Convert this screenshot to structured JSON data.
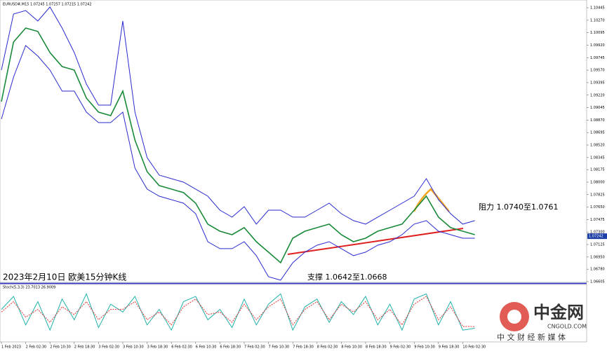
{
  "chart_data": [
    {
      "type": "line",
      "header": "EURUSD#,M15 1.07245 1.07257 1.07215 1.07242",
      "categories": [
        "1 Feb 2023",
        null,
        "2 Feb 02:30",
        null,
        "2 Feb 10:30",
        null,
        "2 Feb 18:30",
        null,
        "3 Feb 02:30",
        null,
        "3 Feb 10:30",
        null,
        "3 Feb 18:30",
        null,
        "6 Feb 02:30",
        null,
        "6 Feb 10:30",
        null,
        "6 Feb 18:30",
        null,
        "7 Feb 02:30",
        null,
        "7 Feb 10:30",
        null,
        "7 Feb 18:30",
        null,
        "8 Feb 02:30",
        null,
        "8 Feb 10:30",
        null,
        "8 Feb 18:30",
        null,
        "9 Feb 02:30",
        null,
        "9 Feb 10:30",
        null,
        "9 Feb 18:30",
        null,
        "10 Feb 02:30",
        null
      ],
      "series": [
        {
          "color": "#1a8a3a",
          "values": [
            1.09129,
            1.09964,
            1.10161,
            1.10112,
            1.09817,
            1.0962,
            1.09571,
            1.09178,
            1.08982,
            1.08933,
            1.09277,
            1.08589,
            1.08147,
            1.07951,
            1.07902,
            1.07853,
            1.07705,
            1.07411,
            1.07312,
            1.07263,
            1.07362,
            1.07165,
            1.07018,
            1.0687,
            1.07214,
            1.07312,
            1.07362,
            1.07411,
            1.07263,
            1.07165,
            1.07214,
            1.07312,
            1.07362,
            1.07411,
            1.07607,
            1.07803,
            1.07509,
            1.07362,
            1.07312,
            1.07263
          ]
        },
        {
          "color": "#2a2ad0",
          "values": [
            1.09571,
            1.10357,
            1.10406,
            1.10259,
            1.10455,
            1.10161,
            1.09817,
            1.09375,
            1.0908,
            1.0908,
            1.10259,
            1.08982,
            1.08344,
            1.08098,
            1.08049,
            1.08,
            1.07902,
            1.07803,
            1.07607,
            1.07509,
            1.07656,
            1.07411,
            1.07607,
            1.07607,
            1.07509,
            1.07509,
            1.07607,
            1.07705,
            1.07558,
            1.0746,
            1.07411,
            1.07509,
            1.07607,
            1.07705,
            1.07803,
            1.08049,
            1.07754,
            1.07558,
            1.07411,
            1.0746
          ]
        },
        {
          "color": "#2a2ad0",
          "values": [
            1.08884,
            1.09473,
            1.09915,
            1.09768,
            1.09571,
            1.09277,
            1.09277,
            1.08982,
            1.08835,
            1.08835,
            1.08982,
            1.08196,
            1.07902,
            1.07803,
            1.07754,
            1.07705,
            1.07558,
            1.07165,
            1.07067,
            1.07067,
            1.07165,
            1.06969,
            1.06674,
            1.06625,
            1.0687,
            1.07018,
            1.07116,
            1.07165,
            1.07067,
            1.06969,
            1.07018,
            1.07116,
            1.07165,
            1.07263,
            1.07411,
            1.0746,
            1.07312,
            1.07263,
            1.07214,
            1.07214
          ]
        }
      ],
      "ylim": [
        1.06595,
        1.10524
      ],
      "yticks": [
        1.10445,
        {
          "value": 1.1027,
          "label": "1.10270"
        },
        1.10095,
        {
          "value": 1.0992,
          "label": "1.09920"
        },
        1.09745,
        {
          "value": 1.0957,
          "label": "1.09570"
        },
        1.09395,
        {
          "value": 1.0922,
          "label": "1.09220"
        },
        1.09045,
        {
          "value": 1.0887,
          "label": "1.08870"
        },
        1.08695,
        {
          "value": 1.0852,
          "label": "1.08520"
        },
        1.08345,
        1.08175,
        {
          "value": 1.08,
          "label": "1.08000"
        },
        1.07825,
        {
          "value": 1.0765,
          "label": "1.07650"
        },
        1.07475,
        {
          "value": 1.073,
          "label": "1.07300"
        },
        1.07125,
        {
          "value": 1.0695,
          "label": "1.06950"
        },
        {
          "value": 1.0678,
          "label": "1.06780"
        },
        1.06605
      ],
      "current_price": 1.07242,
      "annotations": [
        "2023年2月10日 欧美15分钟K线",
        "阻力 1.0740至1.0761",
        "支撑 1.0642至1.0668"
      ]
    },
    {
      "type": "line",
      "title": "Stoch(5,3,3) 23.7013 26.9009",
      "series": [
        {
          "color": "#20b2aa",
          "values": [
            60,
            85,
            30,
            75,
            20,
            80,
            40,
            90,
            25,
            70,
            55,
            85,
            30,
            60,
            20,
            75,
            85,
            40,
            60,
            25,
            80,
            30,
            70,
            90,
            20,
            65,
            80,
            35,
            75,
            50,
            85,
            30,
            70,
            20,
            80,
            90,
            30,
            75,
            20,
            23.7013
          ]
        },
        {
          "color": "#e03030",
          "values": [
            55,
            75,
            45,
            60,
            35,
            65,
            50,
            75,
            40,
            60,
            60,
            75,
            40,
            55,
            30,
            65,
            80,
            50,
            55,
            35,
            70,
            40,
            65,
            80,
            30,
            60,
            75,
            40,
            70,
            55,
            75,
            40,
            60,
            30,
            70,
            85,
            40,
            65,
            27,
            26.9009
          ]
        }
      ],
      "ylim": [
        0,
        100
      ]
    }
  ],
  "watermark": {
    "logo": "中金网",
    "url": "CNGOLD.COM",
    "slogan": "中 文 财 经 新 媒 体"
  }
}
